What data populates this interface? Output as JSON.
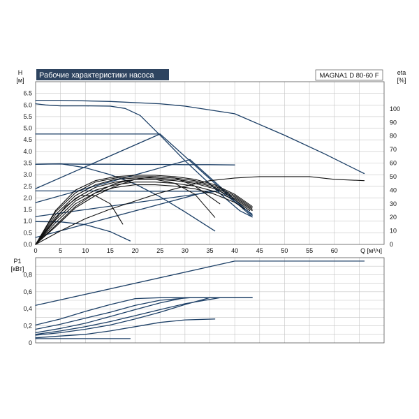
{
  "chart_data": [
    {
      "type": "line",
      "title": "Рабочие характеристики насоса",
      "model": "MAGNA1 D 80-60 F",
      "ylabel": "H",
      "yunit": "[м]",
      "y2label": "eta",
      "y2unit": "[%]",
      "xlabel": "Q [м³/ч]",
      "xlim": [
        0,
        70
      ],
      "ylim": [
        0,
        7
      ],
      "y2lim": [
        0,
        120
      ],
      "xticks": [
        "0",
        "5",
        "10",
        "15",
        "20",
        "25",
        "30",
        "35",
        "40",
        "45",
        "50",
        "55",
        "60"
      ],
      "yticks": [
        "0.0",
        "0.5",
        "1.0",
        "1.5",
        "2.0",
        "2.5",
        "3.0",
        "3.5",
        "4.0",
        "4.5",
        "5.0",
        "5.5",
        "6.0",
        "6.5"
      ],
      "y2ticks": [
        "0",
        "10",
        "20",
        "30",
        "40",
        "50",
        "60",
        "70",
        "80",
        "90",
        "100"
      ],
      "grid": true,
      "series": [
        {
          "axis": "H",
          "color": "#1c3f66",
          "x": [
            0,
            2,
            5,
            10,
            15,
            18,
            21,
            25,
            30,
            35,
            38,
            41,
            43.5
          ],
          "y": [
            6.05,
            6.0,
            5.96,
            5.96,
            5.95,
            5.85,
            5.55,
            4.7,
            3.6,
            2.6,
            2.0,
            1.45,
            1.18
          ]
        },
        {
          "axis": "H",
          "color": "#1c3f66",
          "x": [
            0,
            25
          ],
          "y": [
            4.75,
            4.75
          ]
        },
        {
          "axis": "H",
          "color": "#1c3f66",
          "x": [
            0,
            5,
            10,
            15,
            20,
            25,
            30,
            35,
            40
          ],
          "y": [
            3.45,
            3.46,
            3.45,
            3.45,
            3.44,
            3.44,
            3.43,
            3.43,
            3.42
          ]
        },
        {
          "axis": "H",
          "color": "#1c3f66",
          "x": [
            0,
            10,
            20,
            30,
            37
          ],
          "y": [
            2.3,
            2.3,
            2.29,
            2.29,
            2.29
          ]
        },
        {
          "axis": "H",
          "color": "#1c3f66",
          "x": [
            0,
            5,
            10,
            15,
            20,
            25,
            30,
            36
          ],
          "y": [
            3.45,
            3.47,
            3.3,
            3.0,
            2.6,
            2.05,
            1.4,
            0.58
          ]
        },
        {
          "axis": "H",
          "color": "#1c3f66",
          "x": [
            0,
            5,
            10,
            15,
            19
          ],
          "y": [
            0.98,
            0.97,
            0.85,
            0.55,
            0.15
          ]
        },
        {
          "axis": "H",
          "color": "#1c3f66",
          "x": [
            0,
            25
          ],
          "y": [
            2.4,
            4.75
          ]
        },
        {
          "axis": "H",
          "color": "#1c3f66",
          "x": [
            0,
            31
          ],
          "y": [
            1.8,
            3.65
          ]
        },
        {
          "axis": "H",
          "color": "#1c3f66",
          "x": [
            0,
            37
          ],
          "y": [
            1.2,
            2.3
          ]
        },
        {
          "axis": "H",
          "color": "#1c3f66",
          "x": [
            0,
            35
          ],
          "y": [
            0.3,
            2.3
          ]
        },
        {
          "axis": "H",
          "color": "#1c3f66",
          "x": [
            25,
            43.5
          ],
          "y": [
            4.75,
            1.18
          ]
        },
        {
          "axis": "H",
          "color": "#1c3f66",
          "x": [
            31,
            43.5
          ],
          "y": [
            3.65,
            1.25
          ]
        },
        {
          "axis": "H",
          "color": "#1c3f66",
          "x": [
            36,
            43.5
          ],
          "y": [
            2.45,
            1.3
          ]
        },
        {
          "axis": "H",
          "color": "#1c3f66",
          "x": [
            0,
            5,
            15,
            25,
            30,
            40,
            50,
            58,
            66
          ],
          "y": [
            6.2,
            6.2,
            6.15,
            6.05,
            5.95,
            5.62,
            4.7,
            3.9,
            3.05
          ]
        },
        {
          "axis": "eta",
          "color": "#111111",
          "x": [
            0,
            4,
            8,
            12,
            16,
            20,
            24,
            28,
            32,
            36,
            40,
            43.5
          ],
          "y": [
            0,
            25,
            40,
            47,
            50,
            51,
            51,
            50,
            48,
            44,
            37,
            28
          ]
        },
        {
          "axis": "eta",
          "color": "#111111",
          "x": [
            0,
            4,
            8,
            12,
            16,
            20,
            24,
            28,
            32,
            36,
            40,
            43.5
          ],
          "y": [
            0,
            24,
            38,
            46,
            49,
            50,
            50,
            49,
            47,
            43,
            36,
            27
          ]
        },
        {
          "axis": "eta",
          "color": "#111111",
          "x": [
            0,
            4,
            8,
            12,
            16,
            20,
            24,
            28,
            32,
            36,
            40,
            43.5
          ],
          "y": [
            0,
            22,
            36,
            44,
            48,
            49,
            49,
            48,
            46,
            42,
            35,
            26
          ]
        },
        {
          "axis": "eta",
          "color": "#111111",
          "x": [
            0,
            4,
            8,
            12,
            16,
            20,
            24,
            28,
            32,
            36,
            40,
            43.5
          ],
          "y": [
            0,
            20,
            34,
            42,
            46,
            48,
            48,
            47,
            45,
            41,
            34,
            25
          ]
        },
        {
          "axis": "eta",
          "color": "#111111",
          "x": [
            0,
            4,
            8,
            12,
            16,
            20,
            24,
            28,
            32,
            36,
            40,
            43
          ],
          "y": [
            0,
            18,
            32,
            40,
            44,
            46,
            46,
            45,
            43,
            39,
            33,
            25
          ]
        },
        {
          "axis": "eta",
          "color": "#111111",
          "x": [
            0,
            4,
            8,
            12,
            16,
            20,
            24,
            28,
            32,
            36,
            40,
            42
          ],
          "y": [
            0,
            16,
            30,
            38,
            42,
            44,
            44,
            43,
            41,
            37,
            31,
            26
          ]
        },
        {
          "axis": "eta",
          "color": "#111111",
          "x": [
            0,
            4,
            8,
            12,
            16,
            20,
            24,
            28,
            32,
            36
          ],
          "y": [
            0,
            14,
            28,
            38,
            45,
            48,
            48,
            45,
            37,
            20
          ]
        },
        {
          "axis": "eta",
          "color": "#111111",
          "x": [
            0,
            4,
            8,
            12,
            16,
            20,
            24,
            28,
            32,
            37
          ],
          "y": [
            0,
            13,
            27,
            36,
            43,
            48,
            50,
            49,
            43,
            30
          ]
        },
        {
          "axis": "eta",
          "color": "#111111",
          "x": [
            0,
            3,
            6,
            9,
            12,
            15,
            17.5
          ],
          "y": [
            0,
            14,
            28,
            36,
            36,
            30,
            15
          ]
        },
        {
          "axis": "eta",
          "color": "#111111",
          "x": [
            0,
            5,
            10,
            15,
            20,
            25,
            30,
            35,
            40,
            45,
            50,
            55,
            60,
            66
          ],
          "y": [
            0,
            10,
            19,
            26,
            32,
            38,
            43,
            47,
            49,
            50,
            50,
            50,
            48,
            47
          ]
        }
      ]
    },
    {
      "type": "line",
      "ylabel": "P1",
      "yunit": "[кВт]",
      "xlim": [
        0,
        70
      ],
      "ylim": [
        0,
        1.0
      ],
      "yticks": [
        "0",
        "0,2",
        "0,4",
        "0,6",
        "0,8"
      ],
      "grid": true,
      "series": [
        {
          "color": "#1c3f66",
          "x": [
            0,
            40,
            66
          ],
          "y": [
            0.44,
            0.96,
            0.96
          ]
        },
        {
          "color": "#1c3f66",
          "x": [
            0,
            5,
            10,
            15,
            20,
            25,
            43.5
          ],
          "y": [
            0.21,
            0.28,
            0.37,
            0.45,
            0.52,
            0.53,
            0.53
          ]
        },
        {
          "color": "#1c3f66",
          "x": [
            0,
            5,
            10,
            15,
            20,
            25,
            30,
            43.5
          ],
          "y": [
            0.12,
            0.17,
            0.23,
            0.31,
            0.39,
            0.47,
            0.53,
            0.53
          ]
        },
        {
          "color": "#1c3f66",
          "x": [
            0,
            5,
            10,
            15,
            20,
            25,
            30,
            35,
            43.5
          ],
          "y": [
            0.09,
            0.12,
            0.16,
            0.21,
            0.28,
            0.36,
            0.45,
            0.53,
            0.53
          ]
        },
        {
          "color": "#1c3f66",
          "x": [
            0,
            5,
            10,
            15,
            20,
            25,
            30,
            36
          ],
          "y": [
            0.06,
            0.08,
            0.1,
            0.14,
            0.19,
            0.24,
            0.27,
            0.28
          ]
        },
        {
          "color": "#1c3f66",
          "x": [
            0,
            10,
            19
          ],
          "y": [
            0.05,
            0.05,
            0.05
          ]
        },
        {
          "color": "#1c3f66",
          "x": [
            0,
            5,
            10,
            15,
            20,
            25,
            31
          ],
          "y": [
            0.16,
            0.22,
            0.29,
            0.36,
            0.44,
            0.5,
            0.53
          ]
        },
        {
          "color": "#1c3f66",
          "x": [
            0,
            5,
            10,
            15,
            20,
            25,
            30,
            37
          ],
          "y": [
            0.1,
            0.14,
            0.19,
            0.25,
            0.32,
            0.39,
            0.46,
            0.53
          ]
        }
      ]
    }
  ]
}
